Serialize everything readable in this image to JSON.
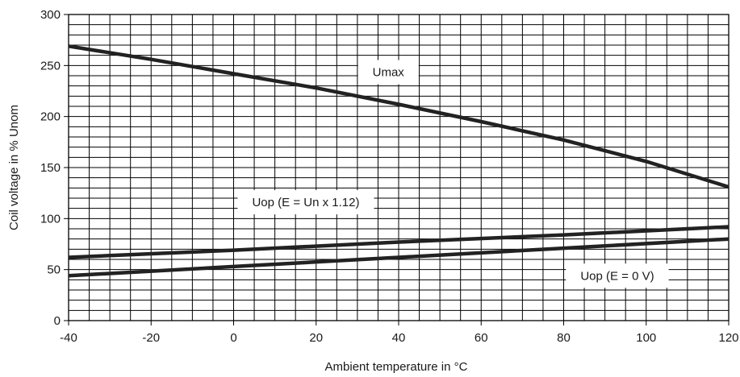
{
  "chart_data": {
    "type": "line",
    "xlabel": "Ambient temperature in °C",
    "ylabel": "Coil voltage in % Unom",
    "xlim": [
      -40,
      120
    ],
    "ylim": [
      0,
      300
    ],
    "x_ticks": [
      -40,
      -20,
      0,
      20,
      40,
      60,
      80,
      100,
      120
    ],
    "y_ticks": [
      0,
      50,
      100,
      150,
      200,
      250,
      300
    ],
    "grid": true,
    "minor_grid_x_step": 5,
    "minor_grid_y_step": 10,
    "colors": {
      "line": "#222222",
      "grid": "#000000",
      "axis": "#000000"
    },
    "series": [
      {
        "name": "Umax",
        "x": [
          -40,
          -20,
          0,
          20,
          40,
          60,
          80,
          100,
          120
        ],
        "y": [
          269,
          256,
          242,
          228,
          212,
          195,
          177,
          156,
          131
        ]
      },
      {
        "name": "Uop (E = Un x 1.12)",
        "x": [
          -40,
          0,
          40,
          80,
          120
        ],
        "y": [
          62,
          69,
          77,
          84,
          92
        ]
      },
      {
        "name": "Uop (E = 0 V)",
        "x": [
          -40,
          0,
          40,
          80,
          120
        ],
        "y": [
          44,
          53,
          62,
          71,
          80
        ]
      }
    ],
    "annotations": [
      {
        "text": "Umax",
        "series": 0,
        "x": 37.5,
        "y": 243.5
      },
      {
        "text": "Uop (E = Un x 1.12)",
        "series": 1,
        "x": 17.5,
        "y": 116
      },
      {
        "text": "Uop (E = 0 V)",
        "series": 2,
        "x": 93,
        "y": 44
      }
    ]
  }
}
